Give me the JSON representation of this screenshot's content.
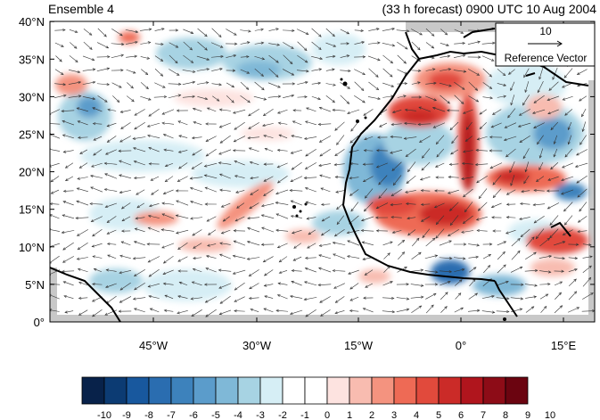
{
  "header": {
    "left_title": "Ensemble 4",
    "right_title": "(33 h forecast) 0900 UTC 10 Aug 2004"
  },
  "map": {
    "lat_labels": [
      "0°",
      "5°N",
      "10°N",
      "15°N",
      "20°N",
      "25°N",
      "30°N",
      "35°N",
      "40°N"
    ],
    "lon_labels": [
      "45°W",
      "30°W",
      "15°W",
      "0°",
      "15°E"
    ]
  },
  "reference_vector": {
    "magnitude": "10",
    "label": "Reference Vector"
  },
  "colorbar": {
    "labels": [
      "-10",
      "-9",
      "-8",
      "-7",
      "-6",
      "-5",
      "-4",
      "-3",
      "-2",
      "-1",
      "0",
      "1",
      "2",
      "3",
      "4",
      "5",
      "6",
      "7",
      "8",
      "9",
      "10"
    ],
    "colors": [
      "#08224a",
      "#0c3b73",
      "#18589e",
      "#2a6db0",
      "#3d82bc",
      "#5b9ccb",
      "#7fb8d7",
      "#a7d3e3",
      "#d6eef5",
      "#ffffff",
      "#ffffff",
      "#fde3e0",
      "#f8bcb0",
      "#f4937f",
      "#ee6a55",
      "#e14a3c",
      "#cb2b28",
      "#b0151d",
      "#8d0c17",
      "#6b0410"
    ]
  },
  "colors": {
    "land_mask": "#c8c8c8",
    "coastline": "#000000",
    "vector": "#333333"
  }
}
